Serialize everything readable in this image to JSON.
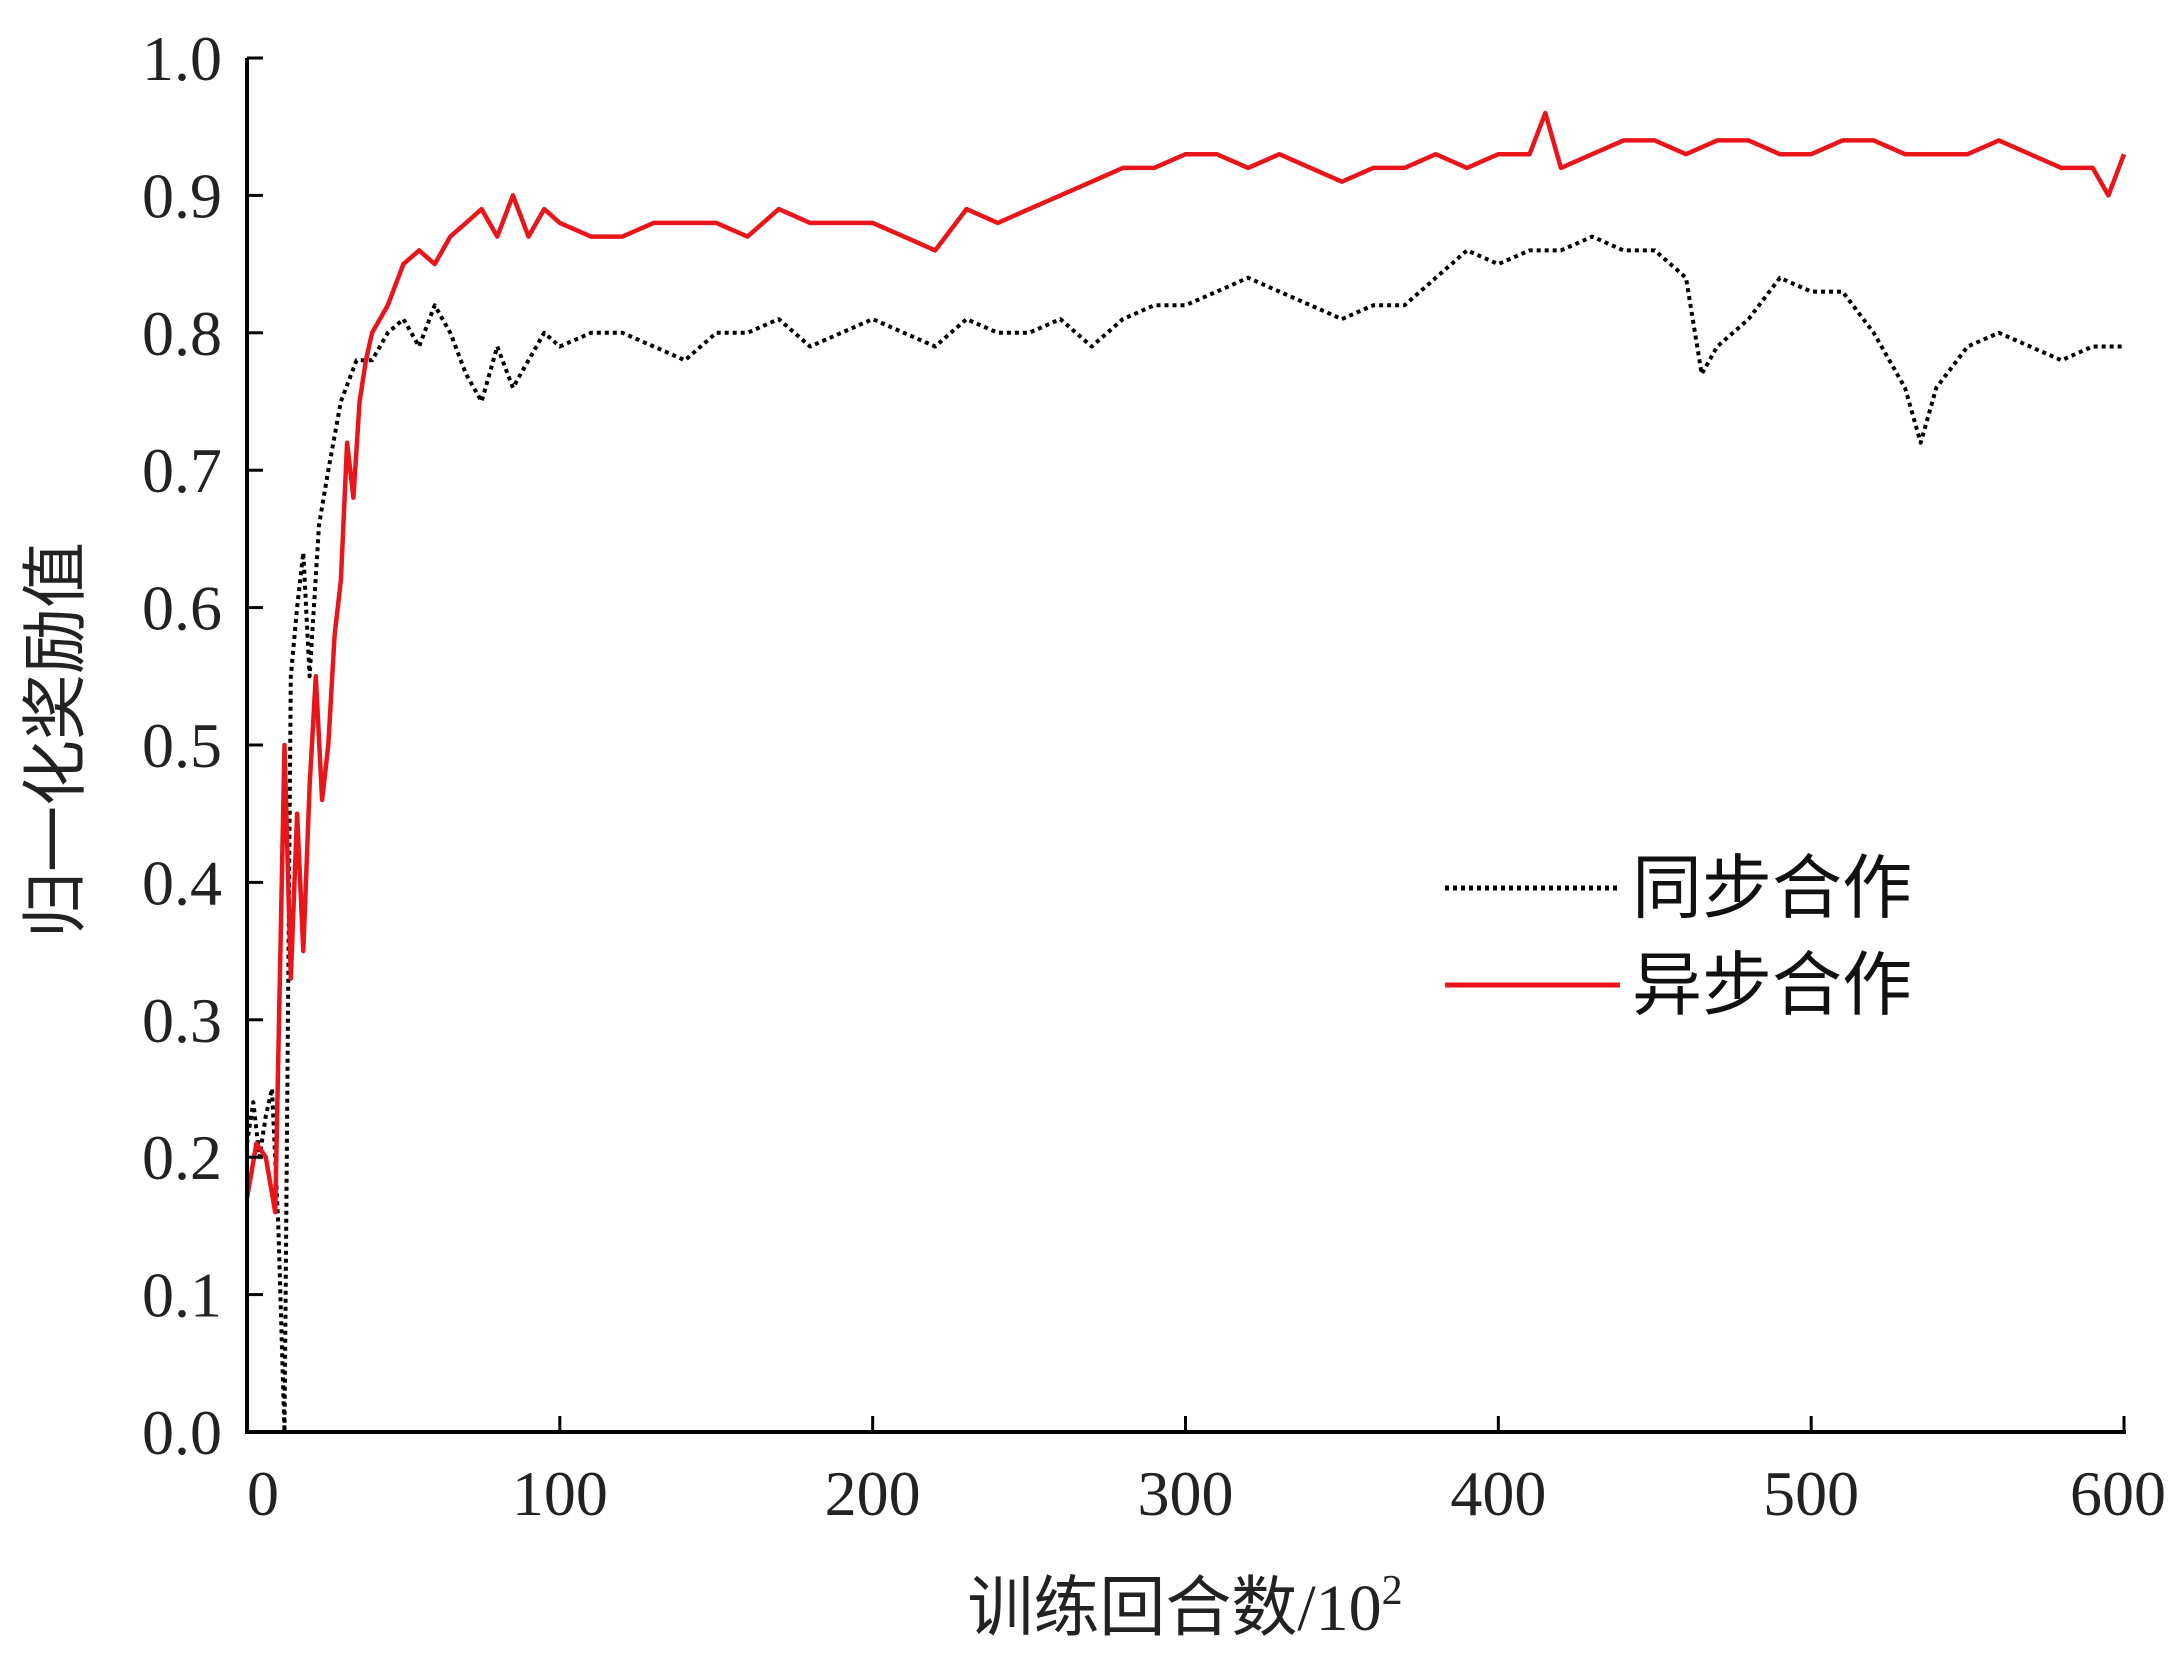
{
  "chart_data": {
    "type": "line",
    "xlabel": "训练回合数/10",
    "xlabel_sup": "2",
    "ylabel": "归一化奖励值",
    "xlim": [
      0,
      600
    ],
    "ylim": [
      0.0,
      1.0
    ],
    "xticks": [
      "0",
      "100",
      "200",
      "300",
      "400",
      "500",
      "600"
    ],
    "yticks": [
      "0.0",
      "0.1",
      "0.2",
      "0.3",
      "0.4",
      "0.5",
      "0.6",
      "0.7",
      "0.8",
      "0.9",
      "1.0"
    ],
    "grid": false,
    "legend_position": "center-right",
    "series": [
      {
        "name": "同步合作",
        "style": "dotted",
        "color": "#000000",
        "x": [
          0,
          2,
          4,
          6,
          8,
          10,
          12,
          14,
          16,
          18,
          20,
          23,
          26,
          30,
          35,
          40,
          45,
          50,
          55,
          60,
          65,
          70,
          75,
          80,
          85,
          90,
          95,
          100,
          110,
          120,
          130,
          140,
          150,
          160,
          170,
          180,
          190,
          200,
          210,
          220,
          230,
          240,
          250,
          260,
          270,
          280,
          290,
          300,
          310,
          320,
          330,
          340,
          350,
          360,
          370,
          380,
          390,
          400,
          410,
          420,
          430,
          440,
          450,
          460,
          465,
          470,
          480,
          490,
          500,
          510,
          520,
          530,
          535,
          540,
          550,
          560,
          570,
          580,
          590,
          600
        ],
        "y": [
          0.21,
          0.24,
          0.2,
          0.23,
          0.25,
          0.15,
          0.0,
          0.55,
          0.6,
          0.64,
          0.55,
          0.66,
          0.7,
          0.75,
          0.78,
          0.78,
          0.8,
          0.81,
          0.79,
          0.82,
          0.8,
          0.77,
          0.75,
          0.79,
          0.76,
          0.78,
          0.8,
          0.79,
          0.8,
          0.8,
          0.79,
          0.78,
          0.8,
          0.8,
          0.81,
          0.79,
          0.8,
          0.81,
          0.8,
          0.79,
          0.81,
          0.8,
          0.8,
          0.81,
          0.79,
          0.81,
          0.82,
          0.82,
          0.83,
          0.84,
          0.83,
          0.82,
          0.81,
          0.82,
          0.82,
          0.84,
          0.86,
          0.85,
          0.86,
          0.86,
          0.87,
          0.86,
          0.86,
          0.84,
          0.77,
          0.79,
          0.81,
          0.84,
          0.83,
          0.83,
          0.8,
          0.76,
          0.72,
          0.76,
          0.79,
          0.8,
          0.79,
          0.78,
          0.79,
          0.79
        ]
      },
      {
        "name": "异步合作",
        "style": "solid",
        "color": "#e8161b",
        "x": [
          0,
          3,
          6,
          9,
          12,
          14,
          16,
          18,
          20,
          22,
          24,
          26,
          28,
          30,
          32,
          34,
          36,
          38,
          40,
          45,
          50,
          55,
          60,
          65,
          70,
          75,
          80,
          85,
          90,
          95,
          100,
          110,
          120,
          130,
          140,
          150,
          160,
          170,
          180,
          190,
          200,
          210,
          220,
          230,
          240,
          250,
          260,
          270,
          280,
          290,
          300,
          310,
          320,
          330,
          340,
          350,
          360,
          370,
          380,
          390,
          400,
          410,
          415,
          420,
          430,
          440,
          450,
          460,
          470,
          480,
          490,
          500,
          510,
          520,
          530,
          540,
          550,
          560,
          570,
          580,
          590,
          595,
          600
        ],
        "y": [
          0.17,
          0.21,
          0.2,
          0.16,
          0.5,
          0.33,
          0.45,
          0.35,
          0.47,
          0.55,
          0.46,
          0.5,
          0.58,
          0.62,
          0.72,
          0.68,
          0.75,
          0.78,
          0.8,
          0.82,
          0.85,
          0.86,
          0.85,
          0.87,
          0.88,
          0.89,
          0.87,
          0.9,
          0.87,
          0.89,
          0.88,
          0.87,
          0.87,
          0.88,
          0.88,
          0.88,
          0.87,
          0.89,
          0.88,
          0.88,
          0.88,
          0.87,
          0.86,
          0.89,
          0.88,
          0.89,
          0.9,
          0.91,
          0.92,
          0.92,
          0.93,
          0.93,
          0.92,
          0.93,
          0.92,
          0.91,
          0.92,
          0.92,
          0.93,
          0.92,
          0.93,
          0.93,
          0.96,
          0.92,
          0.93,
          0.94,
          0.94,
          0.93,
          0.94,
          0.94,
          0.93,
          0.93,
          0.94,
          0.94,
          0.93,
          0.93,
          0.93,
          0.94,
          0.93,
          0.92,
          0.92,
          0.9,
          0.93
        ]
      }
    ]
  }
}
